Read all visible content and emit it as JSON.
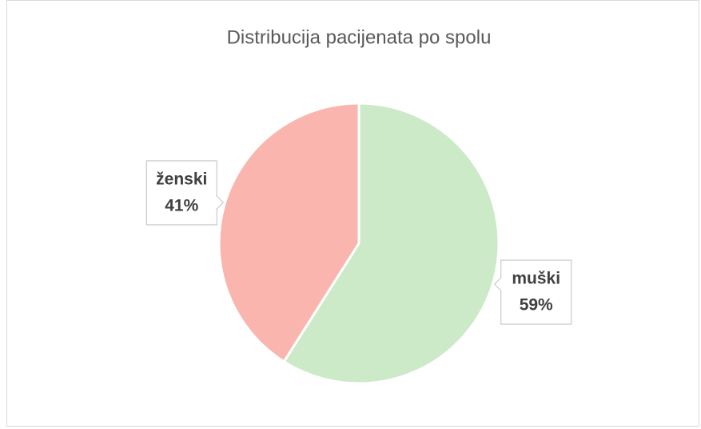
{
  "chart_data": {
    "type": "pie",
    "title": "Distribucija pacijenata po spolu",
    "categories": [
      "muški",
      "ženski"
    ],
    "values": [
      59,
      41
    ],
    "value_labels": [
      "59%",
      "41%"
    ],
    "colors": [
      "#cdeac8",
      "#f9b5ae"
    ]
  }
}
